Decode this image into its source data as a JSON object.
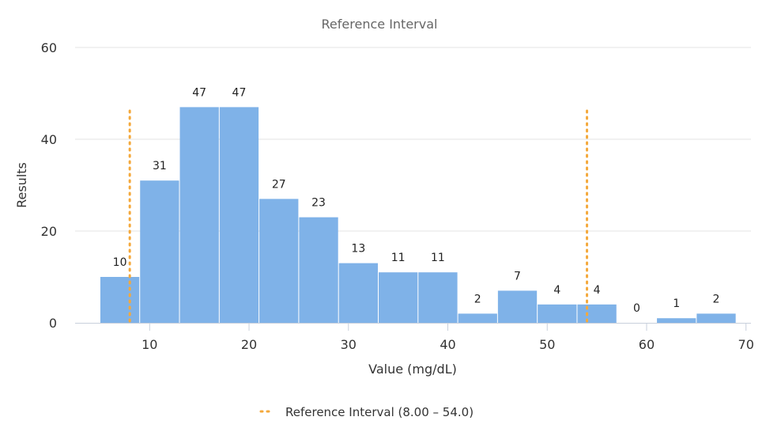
{
  "chart_data": {
    "type": "bar",
    "title": "Reference Interval",
    "xlabel": "Value (mg/dL)",
    "ylabel": "Results",
    "xlim": [
      2.5,
      70.5
    ],
    "ylim": [
      0,
      60
    ],
    "x_ticks": [
      10,
      20,
      30,
      40,
      50,
      60,
      70
    ],
    "y_ticks": [
      0,
      20,
      40,
      60
    ],
    "grid": true,
    "bin_width": 4,
    "bins": [
      {
        "start": 5,
        "end": 9,
        "value": 10
      },
      {
        "start": 9,
        "end": 13,
        "value": 31
      },
      {
        "start": 13,
        "end": 17,
        "value": 47
      },
      {
        "start": 17,
        "end": 21,
        "value": 47
      },
      {
        "start": 21,
        "end": 25,
        "value": 27
      },
      {
        "start": 25,
        "end": 29,
        "value": 23
      },
      {
        "start": 29,
        "end": 33,
        "value": 13
      },
      {
        "start": 33,
        "end": 37,
        "value": 11
      },
      {
        "start": 37,
        "end": 41,
        "value": 11
      },
      {
        "start": 41,
        "end": 45,
        "value": 2
      },
      {
        "start": 45,
        "end": 49,
        "value": 7
      },
      {
        "start": 49,
        "end": 53,
        "value": 4
      },
      {
        "start": 53,
        "end": 57,
        "value": 4
      },
      {
        "start": 57,
        "end": 61,
        "value": 0
      },
      {
        "start": 61,
        "end": 65,
        "value": 1
      },
      {
        "start": 65,
        "end": 69,
        "value": 2
      }
    ],
    "reference_lines": [
      8.0,
      54.0
    ],
    "legend": {
      "position": "bottom",
      "entries": [
        {
          "label": "Reference Interval (8.00 – 54.0)",
          "style": "dotted"
        }
      ]
    },
    "colors": {
      "bar": "#7fb2e8",
      "reference": "#f4a93c",
      "grid": "#e3e3e3",
      "axis": "#c8d0dc"
    }
  }
}
